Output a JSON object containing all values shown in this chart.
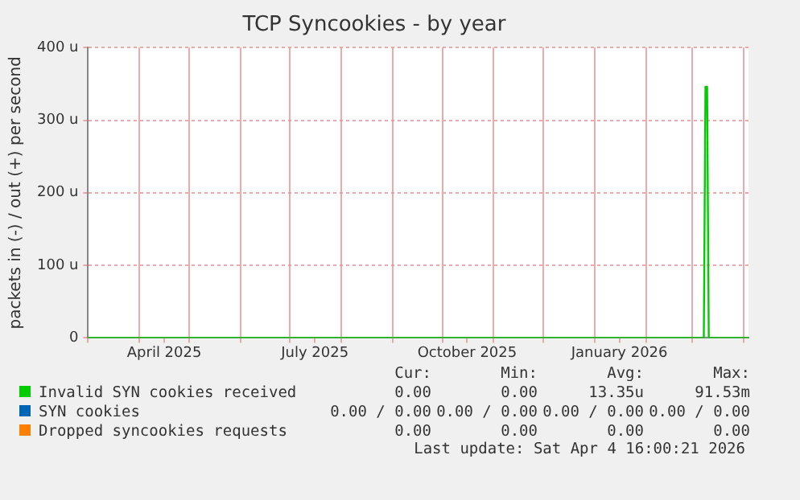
{
  "chart_data": {
    "type": "line",
    "title": "TCP Syncookies - by year",
    "ylabel": "packets in (-) / out (+) per second",
    "x": [
      "2025-03-01",
      "2026-03-08",
      "2026-03-09",
      "2026-03-10",
      "2026-03-11",
      "2026-04-04"
    ],
    "series": [
      {
        "name": "Invalid SYN cookies received",
        "color": "#00cc00",
        "values": [
          0,
          0,
          346,
          346,
          0,
          0
        ]
      },
      {
        "name": "SYN cookies",
        "color": "#0066b3",
        "values": [
          null,
          null,
          null,
          null,
          null,
          null
        ]
      },
      {
        "name": "Dropped syncookies requests",
        "color": "#ff8000",
        "values": [
          null,
          null,
          null,
          null,
          null,
          null
        ]
      }
    ],
    "xlim": [
      "2025-03-01",
      "2026-04-04"
    ],
    "xticks": [
      {
        "value": "2025-03-01",
        "label": null
      },
      {
        "value": "2025-04-01",
        "label": null
      },
      {
        "value": "2025-04-16",
        "label": "April 2025"
      },
      {
        "value": "2025-05-01",
        "label": null
      },
      {
        "value": "2025-06-01",
        "label": null
      },
      {
        "value": "2025-07-01",
        "label": null
      },
      {
        "value": "2025-07-16",
        "label": "July 2025"
      },
      {
        "value": "2025-08-01",
        "label": null
      },
      {
        "value": "2025-09-01",
        "label": null
      },
      {
        "value": "2025-10-01",
        "label": null
      },
      {
        "value": "2025-10-16",
        "label": "October 2025"
      },
      {
        "value": "2025-11-01",
        "label": null
      },
      {
        "value": "2025-12-01",
        "label": null
      },
      {
        "value": "2026-01-01",
        "label": null
      },
      {
        "value": "2026-01-16",
        "label": "January 2026"
      },
      {
        "value": "2026-02-01",
        "label": null
      },
      {
        "value": "2026-03-01",
        "label": null
      },
      {
        "value": "2026-04-01",
        "label": null
      }
    ],
    "ylim": [
      0,
      400
    ],
    "yticks": [
      0,
      {
        "value": 100,
        "label": "100 u"
      },
      {
        "value": 200,
        "label": "200 u"
      },
      {
        "value": 300,
        "label": "300 u"
      },
      {
        "value": 400,
        "label": "400 u"
      }
    ],
    "grid": true,
    "legend": "bottom",
    "marker": "none",
    "line_style": "solid",
    "annotations": [
      "Cur:",
      "Min:",
      "Avg:",
      "Max:",
      "0.00",
      "0.00",
      "13.35u",
      "91.53m",
      "0.00 / 0.00",
      "0.00 / 0.00",
      "0.00 / 0.00",
      "0.00 / 0.00",
      "0.00",
      "0.00",
      "0.00",
      "0.00",
      "Last update: Sat Apr  4 16:00:21 2026"
    ]
  }
}
